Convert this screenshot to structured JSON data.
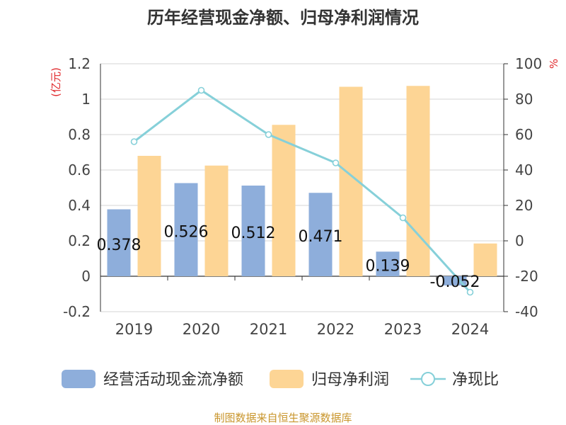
{
  "chart_data": {
    "type": "bar",
    "title": "历年经营现金净额、归母净利润情况",
    "categories": [
      "2019",
      "2020",
      "2021",
      "2022",
      "2023",
      "2024"
    ],
    "series": [
      {
        "name": "经营活动现金流净额",
        "type": "bar",
        "axis": "left",
        "values": [
          0.378,
          0.526,
          0.512,
          0.471,
          0.139,
          -0.052
        ],
        "labels": [
          "0.378",
          "0.526",
          "0.512",
          "0.471",
          "0.139",
          "-0.052"
        ],
        "color": "#8eaedb"
      },
      {
        "name": "归母净利润",
        "type": "bar",
        "axis": "left",
        "values": [
          0.68,
          0.625,
          0.855,
          1.07,
          1.075,
          0.185
        ],
        "color": "#fdd595"
      },
      {
        "name": "净现比",
        "type": "line",
        "axis": "right",
        "values": [
          56,
          85,
          60,
          44,
          13,
          -29
        ],
        "color": "#86d0d9"
      }
    ],
    "y_left": {
      "label": "(亿元)",
      "ylim": [
        -0.2,
        1.2
      ],
      "ticks": [
        "-0.2",
        "0",
        "0.2",
        "0.4",
        "0.6",
        "0.8",
        "1",
        "1.2"
      ]
    },
    "y_right": {
      "label": "%",
      "ylim": [
        -40,
        100
      ],
      "ticks": [
        "-40",
        "-20",
        "0",
        "20",
        "40",
        "60",
        "80",
        "100"
      ]
    },
    "grid": true,
    "legend": "bottom"
  },
  "source": "制图数据来自恒生聚源数据库",
  "colors": {
    "axis_label": "#e0282b",
    "source": "#c9962d",
    "grid": "#d6d6d6"
  }
}
